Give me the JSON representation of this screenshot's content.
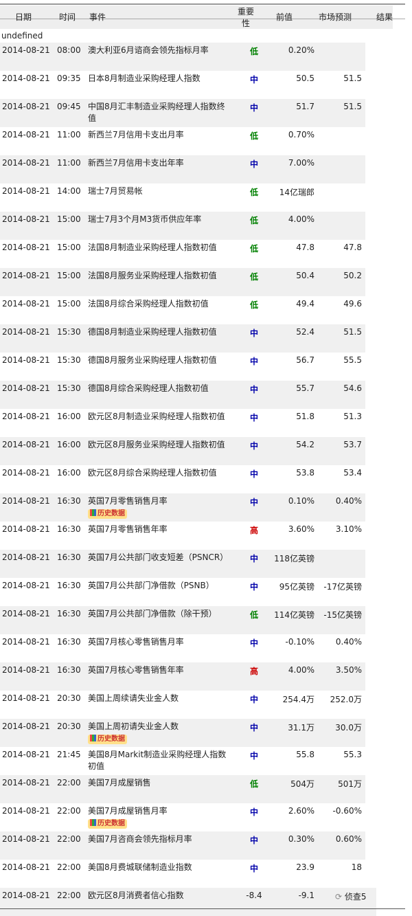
{
  "header": {
    "date": "日期",
    "time": "时间",
    "event": "事件",
    "importance_1": "重要",
    "importance_2": "性",
    "previous": "前值",
    "forecast": "市场预测",
    "result": "结果"
  },
  "undefined_text": "undefined",
  "history_label": "历史数据",
  "colors": {
    "低": "#008000",
    "中": "#0000aa",
    "高": "#cc0000"
  },
  "rows": [
    {
      "date": "2014-08-21",
      "time": "08:00",
      "event": "澳大利亚6月谘商会领先指标月率",
      "importance": "低",
      "previous": "0.20%",
      "forecast": "",
      "result": ""
    },
    {
      "date": "2014-08-21",
      "time": "09:35",
      "event": "日本8月制造业采购经理人指数",
      "importance": "中",
      "previous": "50.5",
      "forecast": "51.5",
      "result": ""
    },
    {
      "date": "2014-08-21",
      "time": "09:45",
      "event": "中国8月汇丰制造业采购经理人指数终值",
      "importance": "中",
      "previous": "51.7",
      "forecast": "51.5",
      "result": ""
    },
    {
      "date": "2014-08-21",
      "time": "11:00",
      "event": "新西兰7月信用卡支出月率",
      "importance": "低",
      "previous": "0.70%",
      "forecast": "",
      "result": ""
    },
    {
      "date": "2014-08-21",
      "time": "11:00",
      "event": "新西兰7月信用卡支出年率",
      "importance": "中",
      "previous": "7.00%",
      "forecast": "",
      "result": ""
    },
    {
      "date": "2014-08-21",
      "time": "14:00",
      "event": "瑞士7月贸易帐",
      "importance": "低",
      "previous": "14亿瑞郎",
      "forecast": "",
      "result": ""
    },
    {
      "date": "2014-08-21",
      "time": "15:00",
      "event": "瑞士7月3个月M3货币供应年率",
      "importance": "低",
      "previous": "4.00%",
      "forecast": "",
      "result": ""
    },
    {
      "date": "2014-08-21",
      "time": "15:00",
      "event": "法国8月制造业采购经理人指数初值",
      "importance": "低",
      "previous": "47.8",
      "forecast": "47.8",
      "result": ""
    },
    {
      "date": "2014-08-21",
      "time": "15:00",
      "event": "法国8月服务业采购经理人指数初值",
      "importance": "低",
      "previous": "50.4",
      "forecast": "50.2",
      "result": ""
    },
    {
      "date": "2014-08-21",
      "time": "15:00",
      "event": "法国8月综合采购经理人指数初值",
      "importance": "低",
      "previous": "49.4",
      "forecast": "49.6",
      "result": ""
    },
    {
      "date": "2014-08-21",
      "time": "15:30",
      "event": "德国8月制造业采购经理人指数初值",
      "importance": "中",
      "previous": "52.4",
      "forecast": "51.5",
      "result": ""
    },
    {
      "date": "2014-08-21",
      "time": "15:30",
      "event": "德国8月服务业采购经理人指数初值",
      "importance": "中",
      "previous": "56.7",
      "forecast": "55.5",
      "result": ""
    },
    {
      "date": "2014-08-21",
      "time": "15:30",
      "event": "德国8月综合采购经理人指数初值",
      "importance": "中",
      "previous": "55.7",
      "forecast": "54.6",
      "result": ""
    },
    {
      "date": "2014-08-21",
      "time": "16:00",
      "event": "欧元区8月制造业采购经理人指数初值",
      "importance": "中",
      "previous": "51.8",
      "forecast": "51.3",
      "result": ""
    },
    {
      "date": "2014-08-21",
      "time": "16:00",
      "event": "欧元区8月服务业采购经理人指数初值",
      "importance": "中",
      "previous": "54.2",
      "forecast": "53.7",
      "result": ""
    },
    {
      "date": "2014-08-21",
      "time": "16:00",
      "event": "欧元区8月综合采购经理人指数初值",
      "importance": "中",
      "previous": "53.8",
      "forecast": "53.4",
      "result": ""
    },
    {
      "date": "2014-08-21",
      "time": "16:30",
      "event": "英国7月零售销售月率",
      "importance": "中",
      "previous": "0.10%",
      "forecast": "0.40%",
      "result": "",
      "history": true
    },
    {
      "date": "2014-08-21",
      "time": "16:30",
      "event": "英国7月零售销售年率",
      "importance": "高",
      "previous": "3.60%",
      "forecast": "3.10%",
      "result": ""
    },
    {
      "date": "2014-08-21",
      "time": "16:30",
      "event": "英国7月公共部门收支短差（PSNCR）",
      "importance": "中",
      "previous": "118亿英镑",
      "forecast": "",
      "result": ""
    },
    {
      "date": "2014-08-21",
      "time": "16:30",
      "event": "英国7月公共部门净借款（PSNB）",
      "importance": "中",
      "previous": "95亿英镑",
      "forecast": "-17亿英镑",
      "result": ""
    },
    {
      "date": "2014-08-21",
      "time": "16:30",
      "event": "英国7月公共部门净借款（除干预）",
      "importance": "低",
      "previous": "114亿英镑",
      "forecast": "-15亿英镑",
      "result": ""
    },
    {
      "date": "2014-08-21",
      "time": "16:30",
      "event": "英国7月核心零售销售月率",
      "importance": "中",
      "previous": "-0.10%",
      "forecast": "0.40%",
      "result": ""
    },
    {
      "date": "2014-08-21",
      "time": "16:30",
      "event": "英国7月核心零售销售年率",
      "importance": "高",
      "previous": "4.00%",
      "forecast": "3.50%",
      "result": ""
    },
    {
      "date": "2014-08-21",
      "time": "20:30",
      "event": "美国上周续请失业金人数",
      "importance": "中",
      "previous": "254.4万",
      "forecast": "252.0万",
      "result": ""
    },
    {
      "date": "2014-08-21",
      "time": "20:30",
      "event": "美国上周初请失业金人数",
      "importance": "中",
      "previous": "31.1万",
      "forecast": "30.0万",
      "result": "",
      "history": true
    },
    {
      "date": "2014-08-21",
      "time": "21:45",
      "event": "美国8月Markit制造业采购经理人指数初值",
      "importance": "中",
      "previous": "55.8",
      "forecast": "55.3",
      "result": ""
    },
    {
      "date": "2014-08-21",
      "time": "22:00",
      "event": "美国7月成屋销售",
      "importance": "低",
      "previous": "504万",
      "forecast": "501万",
      "result": ""
    },
    {
      "date": "2014-08-21",
      "time": "22:00",
      "event": "美国7月成屋销售月率",
      "importance": "中",
      "previous": "2.60%",
      "forecast": "-0.60%",
      "result": "",
      "history": true
    },
    {
      "date": "2014-08-21",
      "time": "22:00",
      "event": "美国7月咨商会领先指标月率",
      "importance": "中",
      "previous": "0.30%",
      "forecast": "0.60%",
      "result": ""
    },
    {
      "date": "2014-08-21",
      "time": "22:00",
      "event": "美国8月费城联储制造业指数",
      "importance": "中",
      "previous": "23.9",
      "forecast": "18",
      "result": ""
    },
    {
      "date": "2014-08-21",
      "time": "22:00",
      "event": "欧元区8月消费者信心指数",
      "importance": "-8.4",
      "previous": "-9.1",
      "forecast": "侦查5",
      "result": "",
      "shifted": true
    }
  ]
}
